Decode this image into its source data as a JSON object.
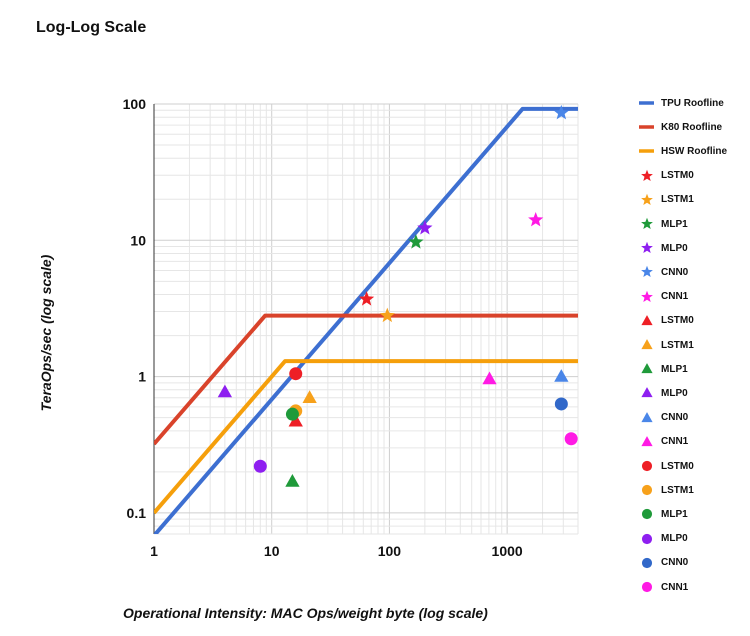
{
  "chart_data": {
    "type": "scatter",
    "title": "Log-Log Scale",
    "xlabel": "Operational Intensity: MAC Ops/weight byte (log scale)",
    "ylabel": "TeraOps/sec (log scale)",
    "xscale": "log",
    "yscale": "log",
    "xlim": [
      1,
      4000
    ],
    "ylim": [
      0.07,
      100
    ],
    "x_ticks": [
      1,
      10,
      100,
      1000
    ],
    "x_tick_labels": [
      "1",
      "10",
      "100",
      "1000"
    ],
    "y_ticks": [
      0.1,
      1,
      10,
      100
    ],
    "y_tick_labels": [
      "0.1",
      "1",
      "10",
      "100"
    ],
    "grid": true,
    "legend_position": "right",
    "rooflines": [
      {
        "name": "TPU Roofline",
        "color": "#3d6fd1",
        "points": [
          [
            1,
            0.068
          ],
          [
            1350,
            92
          ],
          [
            4000,
            92
          ]
        ]
      },
      {
        "name": "K80 Roofline",
        "color": "#d9432b",
        "points": [
          [
            1,
            0.32
          ],
          [
            8.8,
            2.8
          ],
          [
            4000,
            2.8
          ]
        ]
      },
      {
        "name": "HSW Roofline",
        "color": "#f59f0b",
        "points": [
          [
            1,
            0.1
          ],
          [
            13,
            1.3
          ],
          [
            4000,
            1.3
          ]
        ]
      }
    ],
    "series": [
      {
        "name": "LSTM0",
        "marker": "star",
        "color": "#ee1f26",
        "points": [
          [
            64,
            3.7
          ]
        ]
      },
      {
        "name": "LSTM1",
        "marker": "star",
        "color": "#f7a11b",
        "points": [
          [
            96,
            2.8
          ]
        ]
      },
      {
        "name": "MLP1",
        "marker": "star",
        "color": "#1f9a3a",
        "points": [
          [
            168,
            9.7
          ]
        ]
      },
      {
        "name": "MLP0",
        "marker": "star",
        "color": "#8e1ff0",
        "points": [
          [
            200,
            12.3
          ]
        ]
      },
      {
        "name": "CNN0",
        "marker": "star",
        "color": "#4a86e8",
        "points": [
          [
            2888,
            86
          ]
        ]
      },
      {
        "name": "CNN1",
        "marker": "star",
        "color": "#ff1ae4",
        "points": [
          [
            1750,
            14.1
          ]
        ]
      },
      {
        "name": "LSTM0",
        "marker": "triangle",
        "color": "#ee1f26",
        "points": [
          [
            16,
            0.47
          ]
        ]
      },
      {
        "name": "LSTM1",
        "marker": "triangle",
        "color": "#f7a11b",
        "points": [
          [
            21,
            0.7
          ]
        ]
      },
      {
        "name": "MLP1",
        "marker": "triangle",
        "color": "#1f9a3a",
        "points": [
          [
            15,
            0.17
          ]
        ]
      },
      {
        "name": "MLP0",
        "marker": "triangle",
        "color": "#8e1ff0",
        "points": [
          [
            4,
            0.77
          ]
        ]
      },
      {
        "name": "CNN0",
        "marker": "triangle",
        "color": "#4a86e8",
        "points": [
          [
            2888,
            1.0
          ]
        ]
      },
      {
        "name": "CNN1",
        "marker": "triangle",
        "color": "#ff1ae4",
        "points": [
          [
            708,
            0.96
          ]
        ]
      },
      {
        "name": "LSTM0",
        "marker": "circle",
        "color": "#ee1f26",
        "points": [
          [
            16,
            1.05
          ]
        ]
      },
      {
        "name": "LSTM1",
        "marker": "circle",
        "color": "#f7a11b",
        "points": [
          [
            16,
            0.56
          ]
        ]
      },
      {
        "name": "MLP1",
        "marker": "circle",
        "color": "#1f9a3a",
        "points": [
          [
            15,
            0.53
          ]
        ]
      },
      {
        "name": "MLP0",
        "marker": "circle",
        "color": "#8e1ff0",
        "points": [
          [
            8,
            0.22
          ]
        ]
      },
      {
        "name": "CNN0",
        "marker": "circle",
        "color": "#3168c9",
        "points": [
          [
            2888,
            0.63
          ]
        ]
      },
      {
        "name": "CNN1",
        "marker": "circle",
        "color": "#ff1ae4",
        "points": [
          [
            3500,
            0.35
          ]
        ]
      }
    ]
  }
}
